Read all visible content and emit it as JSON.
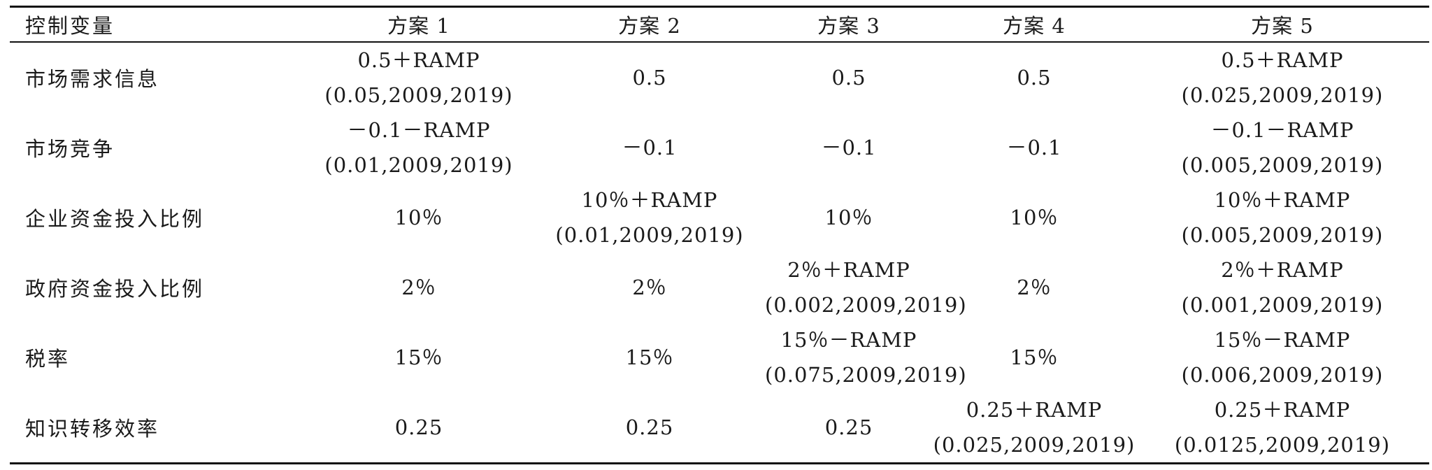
{
  "table": {
    "headers": [
      "控制变量",
      "方案 1",
      "方案 2",
      "方案 3",
      "方案 4",
      "方案 5"
    ],
    "rows": [
      {
        "label": "市场需求信息",
        "cells": [
          [
            "0.5＋RAMP",
            "(0.05,2009,2019)"
          ],
          [
            "0.5"
          ],
          [
            "0.5"
          ],
          [
            "0.5"
          ],
          [
            "0.5＋RAMP",
            "(0.025,2009,2019)"
          ]
        ]
      },
      {
        "label": "市场竞争",
        "cells": [
          [
            "－0.1－RAMP",
            "(0.01,2009,2019)"
          ],
          [
            "－0.1"
          ],
          [
            "－0.1"
          ],
          [
            "－0.1"
          ],
          [
            "－0.1－RAMP",
            "(0.005,2009,2019)"
          ]
        ]
      },
      {
        "label": "企业资金投入比例",
        "cells": [
          [
            "10％"
          ],
          [
            "10％＋RAMP",
            "(0.01,2009,2019)"
          ],
          [
            "10％"
          ],
          [
            "10％"
          ],
          [
            "10％＋RAMP",
            "(0.005,2009,2019)"
          ]
        ]
      },
      {
        "label": "政府资金投入比例",
        "cells": [
          [
            "2％"
          ],
          [
            "2％"
          ],
          [
            "2％＋RAMP",
            "(0.002,2009,2019)"
          ],
          [
            "2％"
          ],
          [
            "2％＋RAMP",
            "(0.001,2009,2019)"
          ]
        ]
      },
      {
        "label": "税率",
        "cells": [
          [
            "15％"
          ],
          [
            "15％"
          ],
          [
            "15％－RAMP",
            "(0.075,2009,2019)"
          ],
          [
            "15％"
          ],
          [
            "15％－RAMP",
            "(0.006,2009,2019)"
          ]
        ]
      },
      {
        "label": "知识转移效率",
        "cells": [
          [
            "0.25"
          ],
          [
            "0.25"
          ],
          [
            "0.25"
          ],
          [
            "0.25＋RAMP",
            "(0.025,2009,2019)"
          ],
          [
            "0.25＋RAMP",
            "(0.0125,2009,2019)"
          ]
        ]
      }
    ]
  }
}
